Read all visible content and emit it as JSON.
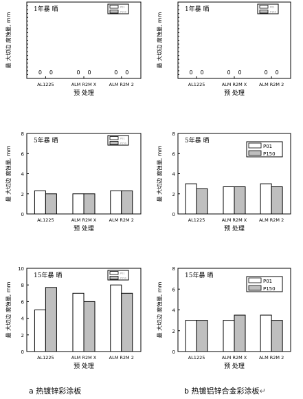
{
  "caption_a": "a 热镀锌彩涂板",
  "caption_b": "b 热镀铝锌合金彩涂板",
  "caption_b_mark": "↵",
  "chart_data": [
    {
      "type": "bar",
      "panel": "a",
      "title": "1年暴 晒",
      "ylabel": "最 大切边 腐蚀量, mm",
      "xlabel": "预 处理",
      "categories": [
        "AL1225",
        "ALM R2M X",
        "ALM R2M 2"
      ],
      "series": [
        {
          "name": "P01",
          "values": [
            0,
            0,
            0
          ]
        },
        {
          "name": "P150",
          "values": [
            0,
            0,
            0
          ]
        }
      ],
      "data_labels": [
        "0",
        "0",
        "0",
        "0",
        "0",
        "0"
      ],
      "ylim": [
        0,
        10
      ],
      "yticks": [],
      "legend": "top-right",
      "grid": false,
      "colors": [
        "#ffffff",
        "#bfbfbf"
      ]
    },
    {
      "type": "bar",
      "panel": "b",
      "title": "1年暴 晒",
      "ylabel": "最 大切边 腐蚀量, mm",
      "xlabel": "预 处理",
      "categories": [
        "AL1225",
        "ALM R2M X",
        "ALM R2M 2"
      ],
      "series": [
        {
          "name": "P01",
          "values": [
            0,
            0,
            0
          ]
        },
        {
          "name": "P150",
          "values": [
            0,
            0,
            0
          ]
        }
      ],
      "data_labels": [
        "0",
        "0",
        "0",
        "0",
        "0",
        "0"
      ],
      "ylim": [
        0,
        10
      ],
      "yticks": [],
      "legend": "top-right",
      "grid": false,
      "colors": [
        "#ffffff",
        "#bfbfbf"
      ]
    },
    {
      "type": "bar",
      "panel": "a",
      "title": "5年暴 晒",
      "ylabel": "最 大切边 腐蚀量, mm",
      "xlabel": "预 处理",
      "categories": [
        "AL1225",
        "ALM R2M X",
        "ALM R2M 2"
      ],
      "series": [
        {
          "name": "P01",
          "values": [
            2.3,
            2.0,
            2.3
          ]
        },
        {
          "name": "P150",
          "values": [
            2.0,
            2.0,
            2.3
          ]
        }
      ],
      "ylim": [
        0,
        8
      ],
      "yticks": [
        "0",
        "2",
        "4",
        "6",
        "8"
      ],
      "legend": "top-right",
      "grid": false,
      "colors": [
        "#ffffff",
        "#bfbfbf"
      ]
    },
    {
      "type": "bar",
      "panel": "b",
      "title": "5年暴 晒",
      "ylabel": "最 大切边 腐蚀量, mm",
      "xlabel": "预 处理",
      "categories": [
        "AL1225",
        "ALM R2M X",
        "ALM R2M 2"
      ],
      "series": [
        {
          "name": "P01",
          "values": [
            3.0,
            2.7,
            3.0
          ]
        },
        {
          "name": "P150",
          "values": [
            2.5,
            2.7,
            2.7
          ]
        }
      ],
      "ylim": [
        0,
        8
      ],
      "yticks": [
        "0",
        "2",
        "4",
        "6",
        "8"
      ],
      "legend": "top-right",
      "grid": false,
      "colors": [
        "#ffffff",
        "#bfbfbf"
      ]
    },
    {
      "type": "bar",
      "panel": "a",
      "title": "15年暴 晒",
      "ylabel": "最 大切边 腐蚀量, mm",
      "xlabel": "预 处理",
      "categories": [
        "AL1225",
        "ALM R2M X",
        "ALM R2M 2"
      ],
      "series": [
        {
          "name": "P01",
          "values": [
            5.0,
            7.0,
            8.0
          ]
        },
        {
          "name": "P150",
          "values": [
            7.7,
            6.0,
            7.0
          ]
        }
      ],
      "ylim": [
        0,
        10
      ],
      "yticks": [
        "0",
        "2",
        "4",
        "6",
        "8",
        "10"
      ],
      "legend": "top-right",
      "grid": false,
      "colors": [
        "#ffffff",
        "#bfbfbf"
      ]
    },
    {
      "type": "bar",
      "panel": "b",
      "title": "15年暴 晒",
      "ylabel": "最 大切边 腐蚀量, mm",
      "xlabel": "预 处理",
      "categories": [
        "AL1225",
        "ALM R2M X",
        "ALM R2M 2"
      ],
      "series": [
        {
          "name": "P01",
          "values": [
            3.0,
            3.0,
            3.5
          ]
        },
        {
          "name": "P150",
          "values": [
            3.0,
            3.5,
            3.0
          ]
        }
      ],
      "ylim": [
        0,
        8
      ],
      "yticks": [
        "0",
        "2",
        "4",
        "6",
        "8"
      ],
      "legend": "top-right",
      "grid": false,
      "colors": [
        "#ffffff",
        "#bfbfbf"
      ]
    }
  ]
}
